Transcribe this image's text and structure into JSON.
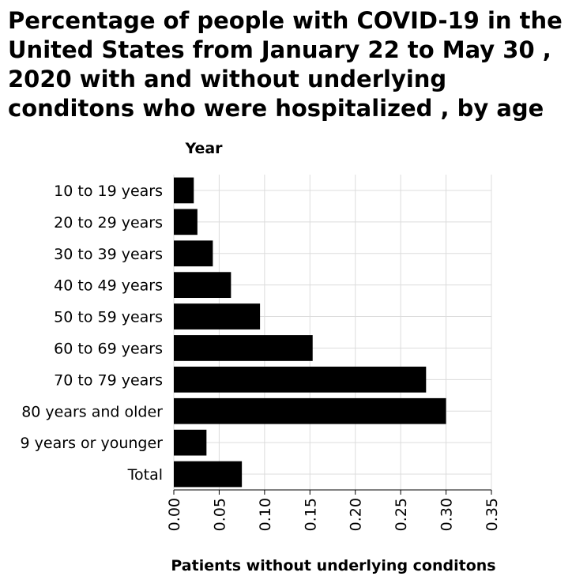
{
  "chart_data": {
    "type": "bar",
    "orientation": "horizontal",
    "title": "Percentage of people with COVID-19 in the United States from January 22 to May 30 , 2020 with and without underlying conditons who were hospitalized , by age",
    "xlabel": "Patients without underlying conditons",
    "ylabel": "Year",
    "categories": [
      "10 to 19 years",
      "20 to 29 years",
      "30 to 39 years",
      "40 to 49 years",
      "50 to 59 years",
      "60 to 69 years",
      "70 to 79 years",
      "80 years and older",
      "9 years or younger",
      "Total"
    ],
    "values": [
      0.022,
      0.026,
      0.043,
      0.063,
      0.095,
      0.153,
      0.278,
      0.3,
      0.036,
      0.075
    ],
    "xlim": [
      0,
      0.35
    ],
    "xticks": [
      "0.00",
      "0.05",
      "0.10",
      "0.15",
      "0.20",
      "0.25",
      "0.30",
      "0.35"
    ],
    "grid": "vertical-and-horizontal",
    "bar_color": "#000000"
  }
}
